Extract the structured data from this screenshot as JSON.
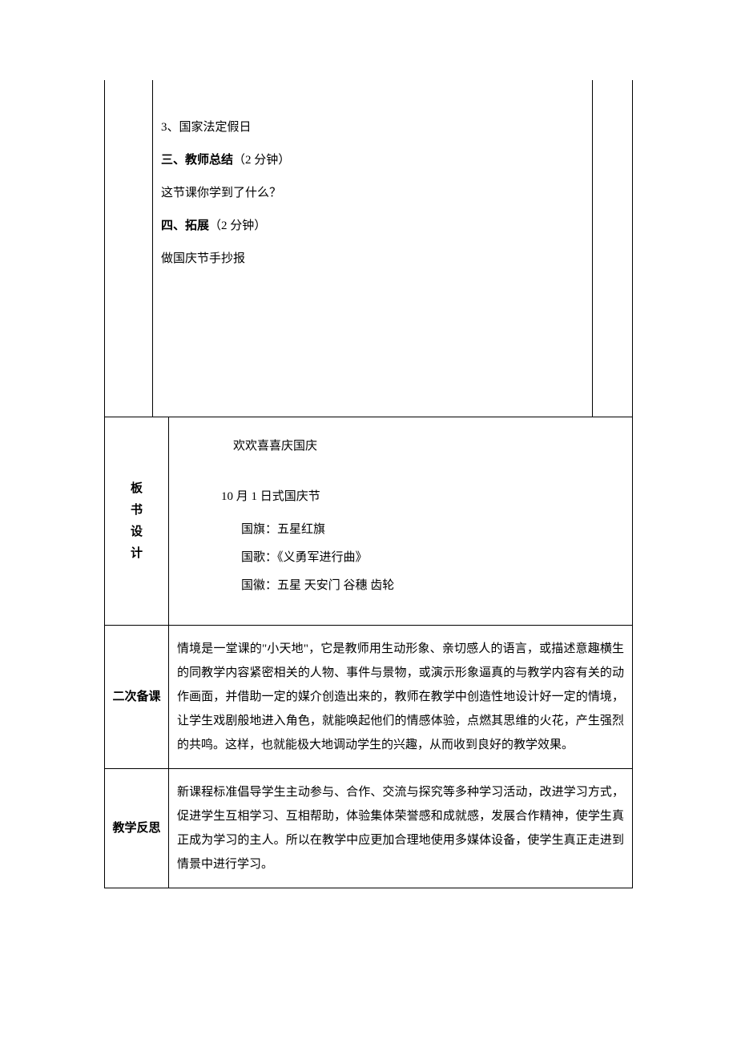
{
  "top_section": {
    "line1": "3、国家法定假日",
    "line2_bold": "三、教师总结",
    "line2_rest": "（2 分钟）",
    "line3": "这节课你学到了什么？",
    "line4_bold": "四、拓展",
    "line4_rest": "（2 分钟）",
    "line5": "做国庆节手抄报"
  },
  "banshu": {
    "header": "板书设计",
    "title": "欢欢喜喜庆国庆",
    "subtitle": "10 月 1 日式国庆节",
    "item1": "国旗：五星红旗",
    "item2": "国歌：《义勇军进行曲》",
    "item3": "国徽：五星  天安门  谷穗  齿轮"
  },
  "erci": {
    "header": "二次备课",
    "content": "情境是一堂课的\"小天地\"，它是教师用生动形象、亲切感人的语言，或描述意趣横生的同教学内容紧密相关的人物、事件与景物，或演示形象逼真的与教学内容有关的动作画面，并借助一定的媒介创造出来的，教师在教学中创造性地设计好一定的情境，让学生戏剧般地进入角色，就能唤起他们的情感体验，点燃其思维的火花，产生强烈的共鸣。这样，也就能极大地调动学生的兴趣，从而收到良好的教学效果。"
  },
  "fansi": {
    "header": "教学反思",
    "content": "新课程标准倡导学生主动参与、合作、交流与探究等多种学习活动，改进学习方式，促进学生互相学习、互相帮助，体验集体荣誉感和成就感，发展合作精神，使学生真正成为学习的主人。所以在教学中应更加合理地使用多媒体设备，使学生真正走进到情景中进行学习。"
  },
  "style": {
    "font_family": "SimSun",
    "font_size_pt": 11,
    "text_color": "#000000",
    "background_color": "#ffffff",
    "border_color": "#000000"
  }
}
